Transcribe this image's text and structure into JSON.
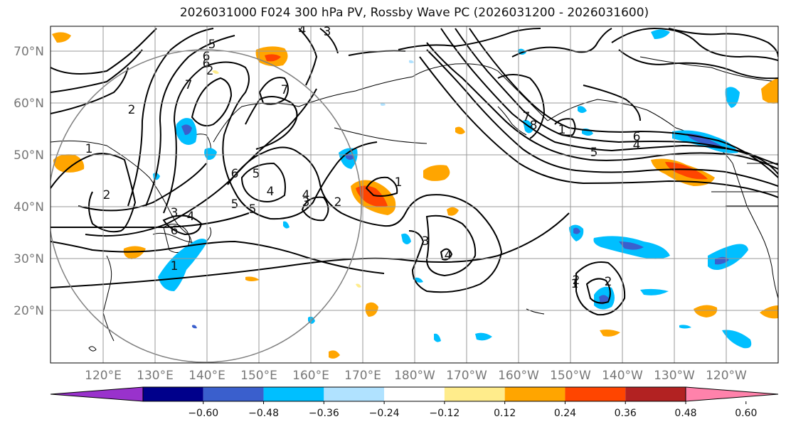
{
  "title": "2026031000 F024 300 hPa PV, Rossby Wave PC (2026031200 - 2026031600)",
  "map": {
    "lat_labels": [
      "70°N",
      "60°N",
      "50°N",
      "40°N",
      "30°N",
      "20°N"
    ],
    "lon_labels": [
      "120°E",
      "130°E",
      "140°E",
      "150°E",
      "160°E",
      "170°E",
      "180°W",
      "170°W",
      "160°W",
      "150°W",
      "140°W",
      "130°W",
      "120°W"
    ],
    "contour_labels": [
      "2",
      "3",
      "4",
      "5",
      "6",
      "7",
      "6",
      "4",
      "5",
      "1",
      "2",
      "3",
      "4",
      "6",
      "7",
      "5",
      "5",
      "6",
      "4",
      "1",
      "2",
      "3",
      "1",
      "4",
      "3",
      "2",
      "1",
      "2",
      "1",
      "6",
      "5",
      "4",
      "7",
      "8",
      "2"
    ]
  },
  "colorbar": {
    "colors": [
      "#9932cc",
      "#00008b",
      "#3a5fcd",
      "#00bfff",
      "#b0e2ff",
      "#ffffff",
      "#ffec8b",
      "#ffa500",
      "#ff4500",
      "#b22222",
      "#ff82ab"
    ],
    "ticks": [
      "−0.60",
      "−0.48",
      "−0.36",
      "−0.24",
      "−0.12",
      "0.12",
      "0.24",
      "0.36",
      "0.48",
      "0.60"
    ]
  },
  "colors": {
    "grid": "#999999",
    "circle": "#808080",
    "contour": "#000000",
    "pos_strong": "#ff4500",
    "pos_mid": "#ffa500",
    "pos_weak": "#ffec8b",
    "neg_weak": "#b0e2ff",
    "neg_mid": "#00bfff",
    "neg_strong": "#3a5fcd"
  }
}
